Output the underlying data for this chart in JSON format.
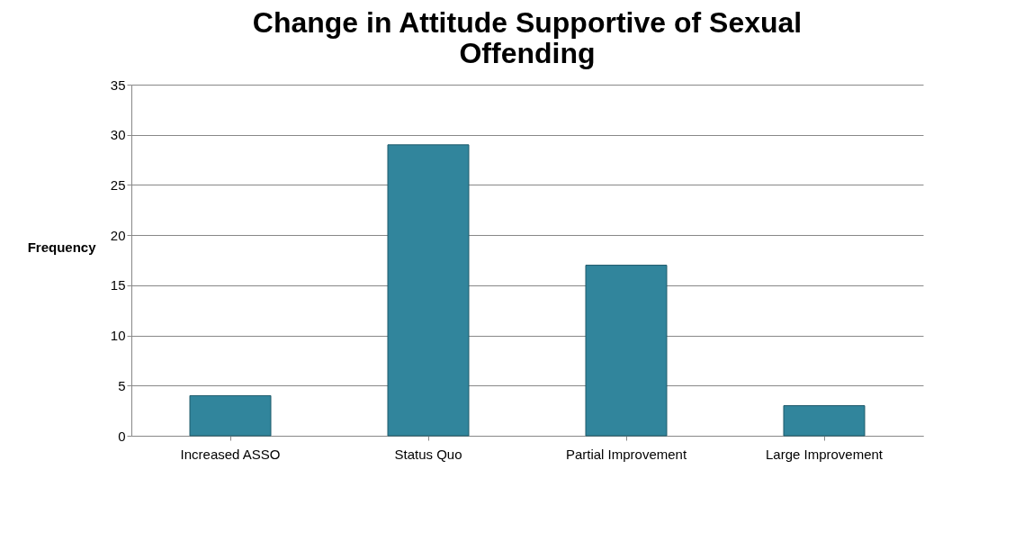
{
  "chart_data": {
    "type": "bar",
    "title": "Change in Attitude Supportive of Sexual Offending",
    "ylabel": "Frequency",
    "categories": [
      "Increased ASSO",
      "Status Quo",
      "Partial Improvement",
      "Large Improvement"
    ],
    "values": [
      4,
      29,
      17,
      3
    ],
    "color": "#31859c",
    "ylim": [
      0,
      35
    ],
    "yticks": [
      0,
      5,
      10,
      15,
      20,
      25,
      30,
      35
    ],
    "grid": "y"
  }
}
